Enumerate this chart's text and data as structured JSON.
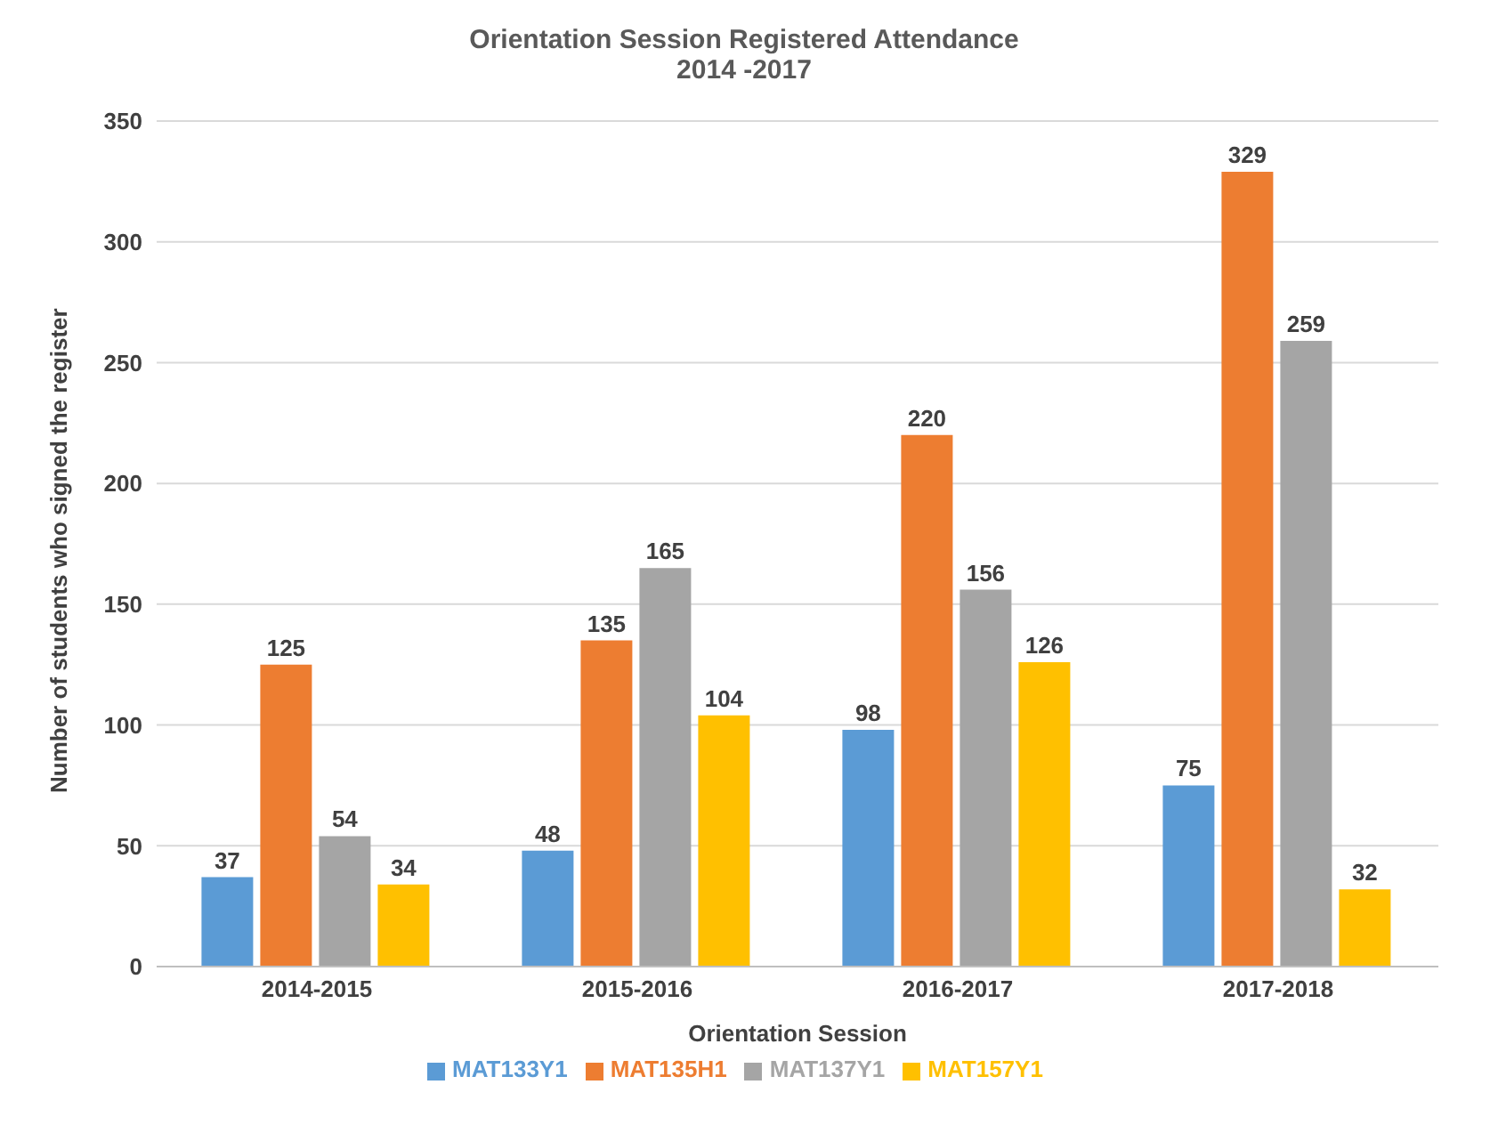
{
  "chart_data": {
    "type": "bar",
    "title": "Orientation Session Registered Attendance",
    "subtitle": "2014 -2017",
    "xlabel": "Orientation Session",
    "ylabel": "Number of students who signed the register",
    "categories": [
      "2014-2015",
      "2015-2016",
      "2016-2017",
      "2017-2018"
    ],
    "series": [
      {
        "name": "MAT133Y1",
        "color": "#5b9bd5",
        "values": [
          37,
          48,
          98,
          75
        ]
      },
      {
        "name": "MAT135H1",
        "color": "#ed7d31",
        "values": [
          125,
          135,
          220,
          329
        ]
      },
      {
        "name": "MAT137Y1",
        "color": "#a5a5a5",
        "values": [
          54,
          165,
          156,
          259
        ]
      },
      {
        "name": "MAT157Y1",
        "color": "#ffc000",
        "values": [
          34,
          104,
          126,
          32
        ]
      }
    ],
    "ylim": [
      0,
      350
    ],
    "yticks": [
      0,
      50,
      100,
      150,
      200,
      250,
      300,
      350
    ],
    "grid": "y",
    "legend": "bottom",
    "data_labels": true
  }
}
